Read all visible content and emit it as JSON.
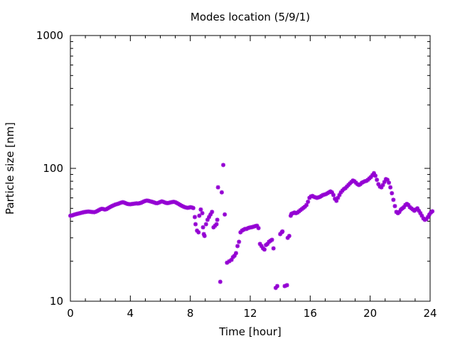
{
  "chart_data": {
    "type": "scatter",
    "title": "Modes location (5/9/1)",
    "xlabel": "Time [hour]",
    "ylabel": "Particle size [nm]",
    "xlim": [
      0,
      24
    ],
    "ylim": [
      10,
      1000
    ],
    "y_scale": "log",
    "grid": false,
    "legend": "none",
    "x_ticks": [
      0,
      4,
      8,
      12,
      16,
      20,
      24
    ],
    "x_tick_labels": [
      "0",
      "4",
      "8",
      "12",
      "16",
      "20",
      "24"
    ],
    "y_ticks": [
      10,
      100,
      1000
    ],
    "y_tick_labels": [
      "10",
      "100",
      "1000"
    ],
    "marker_color": "#9400d3",
    "series": [
      {
        "points": [
          [
            0.0,
            44.0
          ],
          [
            0.1,
            44.2
          ],
          [
            0.2,
            44.6
          ],
          [
            0.3,
            45.0
          ],
          [
            0.4,
            45.3
          ],
          [
            0.5,
            45.6
          ],
          [
            0.6,
            45.9
          ],
          [
            0.7,
            46.2
          ],
          [
            0.8,
            46.5
          ],
          [
            0.9,
            46.8
          ],
          [
            1.0,
            47.0
          ],
          [
            1.1,
            47.2
          ],
          [
            1.2,
            47.3
          ],
          [
            1.3,
            47.2
          ],
          [
            1.4,
            47.0
          ],
          [
            1.5,
            46.9
          ],
          [
            1.6,
            46.8
          ],
          [
            1.7,
            47.2
          ],
          [
            1.8,
            47.8
          ],
          [
            1.9,
            48.5
          ],
          [
            2.0,
            49.2
          ],
          [
            2.1,
            49.6
          ],
          [
            2.2,
            49.4
          ],
          [
            2.3,
            49.0
          ],
          [
            2.4,
            49.3
          ],
          [
            2.5,
            50.0
          ],
          [
            2.6,
            50.8
          ],
          [
            2.7,
            51.5
          ],
          [
            2.8,
            52.2
          ],
          [
            2.9,
            52.8
          ],
          [
            3.0,
            53.4
          ],
          [
            3.1,
            53.8
          ],
          [
            3.2,
            54.2
          ],
          [
            3.3,
            54.8
          ],
          [
            3.4,
            55.3
          ],
          [
            3.5,
            55.6
          ],
          [
            3.6,
            55.2
          ],
          [
            3.7,
            54.6
          ],
          [
            3.8,
            54.0
          ],
          [
            3.9,
            53.8
          ],
          [
            4.0,
            53.7
          ],
          [
            4.1,
            53.9
          ],
          [
            4.2,
            54.1
          ],
          [
            4.3,
            54.3
          ],
          [
            4.4,
            54.5
          ],
          [
            4.5,
            54.4
          ],
          [
            4.6,
            54.6
          ],
          [
            4.7,
            55.0
          ],
          [
            4.8,
            55.6
          ],
          [
            4.9,
            56.3
          ],
          [
            5.0,
            56.9
          ],
          [
            5.1,
            57.2
          ],
          [
            5.2,
            57.0
          ],
          [
            5.3,
            56.6
          ],
          [
            5.4,
            56.2
          ],
          [
            5.5,
            55.8
          ],
          [
            5.6,
            55.3
          ],
          [
            5.7,
            54.8
          ],
          [
            5.8,
            54.7
          ],
          [
            5.9,
            55.2
          ],
          [
            6.0,
            55.9
          ],
          [
            6.1,
            56.4
          ],
          [
            6.2,
            56.0
          ],
          [
            6.3,
            55.4
          ],
          [
            6.4,
            54.9
          ],
          [
            6.5,
            54.8
          ],
          [
            6.6,
            55.1
          ],
          [
            6.7,
            55.5
          ],
          [
            6.8,
            55.8
          ],
          [
            6.9,
            56.0
          ],
          [
            7.0,
            55.6
          ],
          [
            7.1,
            54.9
          ],
          [
            7.2,
            54.1
          ],
          [
            7.3,
            53.3
          ],
          [
            7.4,
            52.5
          ],
          [
            7.5,
            51.8
          ],
          [
            7.6,
            51.2
          ],
          [
            7.7,
            50.8
          ],
          [
            7.8,
            50.5
          ],
          [
            7.9,
            50.6
          ],
          [
            8.0,
            51.0
          ],
          [
            8.1,
            50.8
          ],
          [
            8.2,
            50.3
          ],
          [
            8.3,
            43.0
          ],
          [
            8.35,
            38.0
          ],
          [
            8.45,
            34.0
          ],
          [
            8.55,
            33.0
          ],
          [
            8.6,
            44.0
          ],
          [
            8.7,
            49.0
          ],
          [
            8.8,
            46.0
          ],
          [
            8.85,
            36.0
          ],
          [
            8.9,
            32.0
          ],
          [
            8.95,
            31.0
          ],
          [
            9.05,
            38.0
          ],
          [
            9.15,
            41.0
          ],
          [
            9.25,
            43.0
          ],
          [
            9.35,
            45.0
          ],
          [
            9.45,
            47.0
          ],
          [
            9.55,
            36.0
          ],
          [
            9.65,
            37.0
          ],
          [
            9.75,
            38.0
          ],
          [
            9.8,
            41.0
          ],
          [
            9.85,
            72.0
          ],
          [
            10.0,
            14.0
          ],
          [
            10.1,
            66.0
          ],
          [
            10.2,
            106.0
          ],
          [
            10.3,
            45.0
          ],
          [
            10.45,
            19.5
          ],
          [
            10.6,
            20.0
          ],
          [
            10.75,
            20.5
          ],
          [
            10.85,
            21.5
          ],
          [
            10.95,
            22.0
          ],
          [
            11.05,
            23.0
          ],
          [
            11.15,
            26.0
          ],
          [
            11.25,
            28.0
          ],
          [
            11.35,
            33.0
          ],
          [
            11.45,
            34.0
          ],
          [
            11.55,
            34.5
          ],
          [
            11.65,
            35.0
          ],
          [
            11.75,
            35.0
          ],
          [
            11.85,
            35.5
          ],
          [
            11.95,
            35.8
          ],
          [
            12.05,
            36.0
          ],
          [
            12.15,
            36.2
          ],
          [
            12.25,
            36.5
          ],
          [
            12.35,
            36.8
          ],
          [
            12.45,
            37.0
          ],
          [
            12.55,
            35.5
          ],
          [
            12.65,
            27.0
          ],
          [
            12.75,
            26.0
          ],
          [
            12.85,
            25.0
          ],
          [
            12.95,
            24.5
          ],
          [
            13.05,
            26.5
          ],
          [
            13.15,
            27.0
          ],
          [
            13.25,
            28.0
          ],
          [
            13.35,
            28.5
          ],
          [
            13.45,
            29.0
          ],
          [
            13.55,
            25.0
          ],
          [
            13.7,
            12.6
          ],
          [
            13.8,
            13.0
          ],
          [
            14.0,
            32.0
          ],
          [
            14.1,
            33.0
          ],
          [
            14.15,
            33.5
          ],
          [
            14.3,
            13.0
          ],
          [
            14.45,
            13.2
          ],
          [
            14.5,
            30.0
          ],
          [
            14.6,
            31.0
          ],
          [
            14.7,
            44.0
          ],
          [
            14.75,
            45.5
          ],
          [
            14.85,
            46.0
          ],
          [
            14.95,
            46.5
          ],
          [
            15.05,
            46.0
          ],
          [
            15.15,
            46.5
          ],
          [
            15.25,
            47.5
          ],
          [
            15.35,
            48.5
          ],
          [
            15.45,
            49.5
          ],
          [
            15.55,
            50.5
          ],
          [
            15.65,
            51.5
          ],
          [
            15.75,
            53.0
          ],
          [
            15.85,
            56.0
          ],
          [
            15.95,
            60.0
          ],
          [
            16.05,
            61.5
          ],
          [
            16.15,
            62.0
          ],
          [
            16.25,
            61.0
          ],
          [
            16.35,
            60.5
          ],
          [
            16.45,
            60.0
          ],
          [
            16.55,
            60.5
          ],
          [
            16.65,
            61.0
          ],
          [
            16.75,
            62.0
          ],
          [
            16.85,
            63.0
          ],
          [
            16.95,
            63.5
          ],
          [
            17.05,
            64.0
          ],
          [
            17.15,
            65.0
          ],
          [
            17.25,
            66.0
          ],
          [
            17.35,
            67.0
          ],
          [
            17.45,
            66.0
          ],
          [
            17.55,
            63.0
          ],
          [
            17.65,
            59.0
          ],
          [
            17.75,
            57.0
          ],
          [
            17.85,
            60.0
          ],
          [
            17.95,
            63.0
          ],
          [
            18.05,
            66.0
          ],
          [
            18.15,
            68.0
          ],
          [
            18.25,
            70.0
          ],
          [
            18.35,
            71.0
          ],
          [
            18.45,
            73.0
          ],
          [
            18.55,
            75.0
          ],
          [
            18.65,
            77.0
          ],
          [
            18.75,
            79.0
          ],
          [
            18.85,
            81.0
          ],
          [
            18.95,
            80.0
          ],
          [
            19.05,
            78.0
          ],
          [
            19.15,
            76.0
          ],
          [
            19.25,
            75.0
          ],
          [
            19.35,
            76.0
          ],
          [
            19.45,
            78.0
          ],
          [
            19.55,
            79.0
          ],
          [
            19.65,
            80.0
          ],
          [
            19.75,
            80.5
          ],
          [
            19.85,
            82.0
          ],
          [
            19.95,
            84.0
          ],
          [
            20.05,
            86.0
          ],
          [
            20.15,
            89.0
          ],
          [
            20.25,
            92.0
          ],
          [
            20.35,
            88.0
          ],
          [
            20.45,
            82.0
          ],
          [
            20.55,
            76.0
          ],
          [
            20.65,
            73.0
          ],
          [
            20.75,
            72.0
          ],
          [
            20.85,
            75.0
          ],
          [
            20.95,
            79.0
          ],
          [
            21.05,
            83.0
          ],
          [
            21.15,
            82.0
          ],
          [
            21.25,
            78.0
          ],
          [
            21.35,
            72.0
          ],
          [
            21.45,
            65.0
          ],
          [
            21.55,
            58.0
          ],
          [
            21.65,
            52.0
          ],
          [
            21.75,
            47.0
          ],
          [
            21.85,
            46.0
          ],
          [
            21.95,
            47.0
          ],
          [
            22.05,
            49.0
          ],
          [
            22.15,
            50.0
          ],
          [
            22.25,
            51.0
          ],
          [
            22.35,
            53.0
          ],
          [
            22.45,
            54.0
          ],
          [
            22.55,
            53.0
          ],
          [
            22.65,
            51.0
          ],
          [
            22.75,
            50.0
          ],
          [
            22.85,
            49.0
          ],
          [
            22.95,
            48.0
          ],
          [
            23.05,
            49.0
          ],
          [
            23.15,
            50.0
          ],
          [
            23.25,
            48.0
          ],
          [
            23.35,
            46.0
          ],
          [
            23.45,
            44.0
          ],
          [
            23.55,
            42.0
          ],
          [
            23.65,
            41.0
          ],
          [
            23.75,
            41.5
          ],
          [
            23.85,
            43.0
          ],
          [
            23.95,
            45.0
          ],
          [
            24.05,
            46.5
          ],
          [
            24.15,
            47.5
          ]
        ]
      }
    ]
  }
}
